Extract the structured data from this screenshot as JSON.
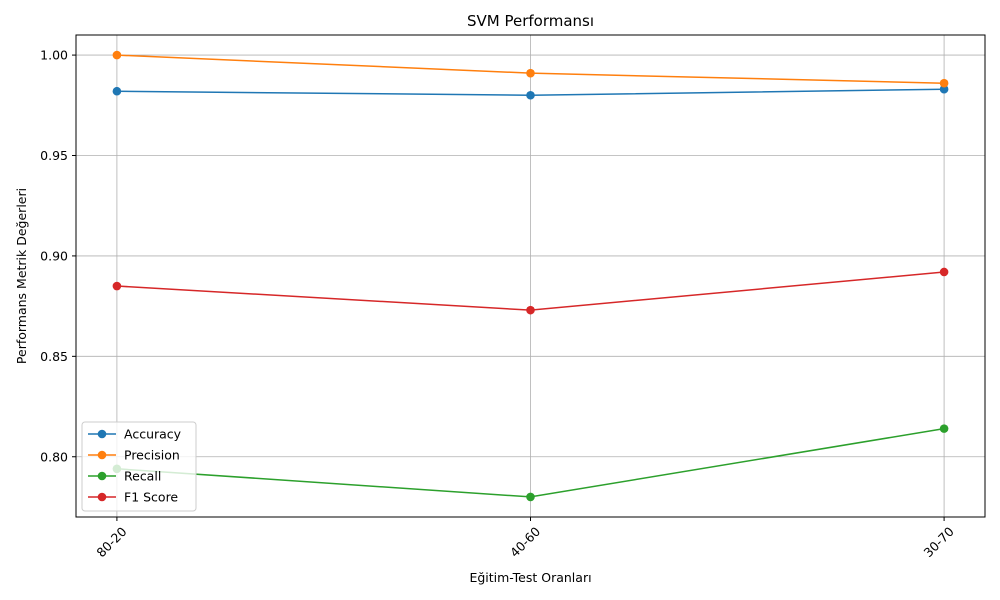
{
  "chart_data": {
    "type": "line",
    "title": "SVM Performansı",
    "xlabel": "Eğitim-Test Oranları",
    "ylabel": "Performans Metrik Değerleri",
    "categories": [
      "80-20",
      "40-60",
      "30-70"
    ],
    "ylim": [
      0.77,
      1.01
    ],
    "yticks": [
      "0.80",
      "0.85",
      "0.90",
      "0.95",
      "1.00"
    ],
    "grid": true,
    "legend_position": "lower-left",
    "series": [
      {
        "name": "Accuracy",
        "color": "#1f77b4",
        "values": [
          0.982,
          0.98,
          0.983
        ]
      },
      {
        "name": "Precision",
        "color": "#ff7f0e",
        "values": [
          1.0,
          0.991,
          0.986
        ]
      },
      {
        "name": "Recall",
        "color": "#2ca02c",
        "values": [
          0.794,
          0.78,
          0.814
        ]
      },
      {
        "name": "F1 Score",
        "color": "#d62728",
        "values": [
          0.885,
          0.873,
          0.892
        ]
      }
    ]
  }
}
